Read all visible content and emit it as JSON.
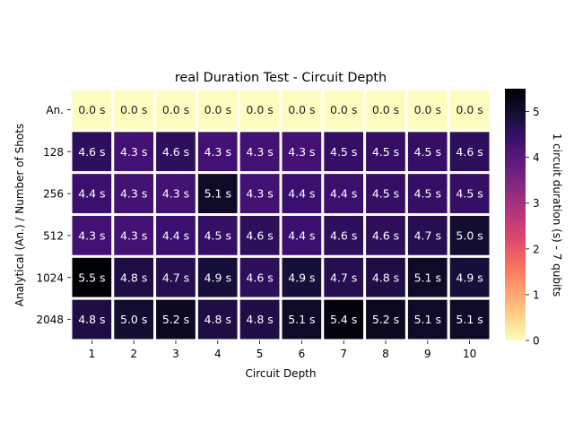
{
  "chart_data": {
    "type": "heatmap",
    "title": "real Duration Test - Circuit Depth",
    "xlabel": "Circuit Depth",
    "ylabel": "Analytical (An.) / Number of Shots",
    "x_categories": [
      "1",
      "2",
      "3",
      "4",
      "5",
      "6",
      "7",
      "8",
      "9",
      "10"
    ],
    "y_categories": [
      "An.",
      "128",
      "256",
      "512",
      "1024",
      "2048"
    ],
    "values": [
      [
        0.0,
        0.0,
        0.0,
        0.0,
        0.0,
        0.0,
        0.0,
        0.0,
        0.0,
        0.0
      ],
      [
        4.6,
        4.3,
        4.6,
        4.3,
        4.3,
        4.3,
        4.5,
        4.5,
        4.5,
        4.6
      ],
      [
        4.4,
        4.3,
        4.3,
        5.1,
        4.3,
        4.4,
        4.4,
        4.5,
        4.5,
        4.5
      ],
      [
        4.3,
        4.3,
        4.4,
        4.5,
        4.6,
        4.4,
        4.6,
        4.6,
        4.7,
        5.0
      ],
      [
        5.5,
        4.8,
        4.7,
        4.9,
        4.6,
        4.9,
        4.7,
        4.8,
        5.1,
        4.9
      ],
      [
        4.8,
        5.0,
        5.2,
        4.8,
        4.8,
        5.1,
        5.4,
        5.2,
        5.1,
        5.1
      ]
    ],
    "cell_labels": [
      [
        "0.0 s",
        "0.0 s",
        "0.0 s",
        "0.0 s",
        "0.0 s",
        "0.0 s",
        "0.0 s",
        "0.0 s",
        "0.0 s",
        "0.0 s"
      ],
      [
        "4.6 s",
        "4.3 s",
        "4.6 s",
        "4.3 s",
        "4.3 s",
        "4.3 s",
        "4.5 s",
        "4.5 s",
        "4.5 s",
        "4.6 s"
      ],
      [
        "4.4 s",
        "4.3 s",
        "4.3 s",
        "5.1 s",
        "4.3 s",
        "4.4 s",
        "4.4 s",
        "4.5 s",
        "4.5 s",
        "4.5 s"
      ],
      [
        "4.3 s",
        "4.3 s",
        "4.4 s",
        "4.5 s",
        "4.6 s",
        "4.4 s",
        "4.6 s",
        "4.6 s",
        "4.7 s",
        "5.0 s"
      ],
      [
        "5.5 s",
        "4.8 s",
        "4.7 s",
        "4.9 s",
        "4.6 s",
        "4.9 s",
        "4.7 s",
        "4.8 s",
        "5.1 s",
        "4.9 s"
      ],
      [
        "4.8 s",
        "5.0 s",
        "5.2 s",
        "4.8 s",
        "4.8 s",
        "5.1 s",
        "5.4 s",
        "5.2 s",
        "5.1 s",
        "5.1 s"
      ]
    ],
    "colormap": "magma_r",
    "vmin": 0,
    "vmax": 5.5,
    "colorbar": {
      "label": "1 circuit duration (s) - 7 qubits",
      "ticks": [
        0,
        1,
        2,
        3,
        4,
        5
      ],
      "tick_labels": [
        "0",
        "1",
        "2",
        "3",
        "4",
        "5"
      ],
      "position": "right"
    },
    "grid": false
  }
}
